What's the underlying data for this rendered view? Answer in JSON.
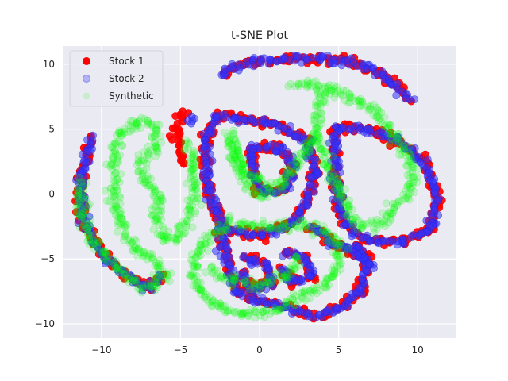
{
  "chart_data": {
    "type": "scatter",
    "title": "t-SNE Plot",
    "xlabel": "",
    "ylabel": "",
    "xlim": [
      -12.4,
      12.4
    ],
    "ylim": [
      -11.1,
      11.4
    ],
    "xticks": [
      -10,
      -5,
      0,
      5,
      10
    ],
    "yticks": [
      -10,
      -5,
      0,
      5,
      10
    ],
    "xtick_labels": [
      "−10",
      "−5",
      "0",
      "5",
      "10"
    ],
    "ytick_labels": [
      "−10",
      "−5",
      "0",
      "5",
      "10"
    ],
    "grid": true,
    "legend_position": "top-left",
    "series": [
      {
        "name": "Stock 1",
        "color": "#ff0000",
        "edge_color": "#ff0000",
        "alpha": 0.9,
        "jitter": 0.35,
        "density": 0.28,
        "paths": [
          [
            [
              -10.6,
              4.3
            ],
            [
              -10.9,
              3
            ],
            [
              -11.3,
              1
            ],
            [
              -11.3,
              -1.5
            ],
            [
              -10.6,
              -3.5
            ],
            [
              -9.6,
              -5
            ],
            [
              -8.6,
              -6.2
            ],
            [
              -7.6,
              -7
            ],
            [
              -6.8,
              -7.2
            ],
            [
              -6.2,
              -6.2
            ]
          ],
          [
            [
              -4.6,
              6.5
            ],
            [
              -5.2,
              5.6
            ],
            [
              -5.3,
              4
            ],
            [
              -4.8,
              2.2
            ]
          ],
          [
            [
              -2.3,
              9
            ],
            [
              -1.8,
              9.8
            ],
            [
              0,
              10.2
            ],
            [
              2,
              10.4
            ],
            [
              4,
              10.5
            ],
            [
              6,
              10.1
            ],
            [
              7.8,
              9.2
            ],
            [
              9.6,
              7.2
            ]
          ],
          [
            [
              -2.7,
              6
            ],
            [
              -3.4,
              4
            ],
            [
              -3.4,
              1.5
            ],
            [
              -3,
              -0.8
            ],
            [
              -2,
              -2.8
            ],
            [
              0,
              -3.2
            ],
            [
              2,
              -2.4
            ],
            [
              3,
              -0.5
            ],
            [
              3.6,
              1.8
            ],
            [
              3.1,
              4
            ],
            [
              1,
              5.3
            ],
            [
              -1.3,
              5.8
            ],
            [
              -2.7,
              6
            ]
          ],
          [
            [
              -0.6,
              3.5
            ],
            [
              -0.4,
              1.5
            ],
            [
              0.2,
              0.2
            ],
            [
              1.6,
              0.3
            ],
            [
              2.2,
              2.2
            ],
            [
              1.3,
              3.6
            ],
            [
              -0.6,
              3.5
            ]
          ],
          [
            [
              4.8,
              5.2
            ],
            [
              6.8,
              5
            ],
            [
              8.6,
              4.3
            ],
            [
              10.5,
              2.3
            ],
            [
              11.2,
              0
            ],
            [
              10.8,
              -2.8
            ],
            [
              9,
              -3.7
            ],
            [
              6.8,
              -3.6
            ],
            [
              5.3,
              -2.3
            ],
            [
              4.8,
              0.4
            ],
            [
              4.8,
              3
            ],
            [
              4.8,
              5.2
            ]
          ],
          [
            [
              3.2,
              -2.5
            ],
            [
              4.6,
              -3.8
            ],
            [
              6.5,
              -4.6
            ],
            [
              7.2,
              -5.8
            ]
          ],
          [
            [
              -2.6,
              -2.5
            ],
            [
              -2.1,
              -5
            ],
            [
              -1.5,
              -7.5
            ],
            [
              0,
              -8.3
            ],
            [
              2,
              -8.8
            ],
            [
              3.5,
              -9.4
            ],
            [
              5,
              -8.8
            ],
            [
              6.4,
              -7.4
            ],
            [
              6.8,
              -5.2
            ],
            [
              6,
              -3.8
            ]
          ],
          [
            [
              -1,
              -4.8
            ],
            [
              0.5,
              -5.5
            ],
            [
              0.8,
              -7
            ],
            [
              -0.6,
              -7.3
            ],
            [
              -1.2,
              -6
            ]
          ],
          [
            [
              1.6,
              -4.5
            ],
            [
              3,
              -4.9
            ],
            [
              3.3,
              -6.4
            ],
            [
              2,
              -6.8
            ],
            [
              1.4,
              -5.6
            ]
          ]
        ]
      },
      {
        "name": "Stock 2",
        "color": "#3333ff",
        "edge_color": "#2222dd",
        "alpha": 0.55,
        "jitter": 0.3,
        "density": 0.28,
        "paths": [
          [
            [
              -10.6,
              4.3
            ],
            [
              -10.9,
              3
            ],
            [
              -11.3,
              1
            ],
            [
              -11.3,
              -1.5
            ],
            [
              -10.6,
              -3.5
            ],
            [
              -9.6,
              -5
            ],
            [
              -8.6,
              -6.2
            ],
            [
              -7.6,
              -7
            ],
            [
              -6.8,
              -7.2
            ],
            [
              -6.2,
              -6.2
            ]
          ],
          [
            [
              -4.2,
              6
            ],
            [
              -4.2,
              5.3
            ]
          ],
          [
            [
              -2.3,
              9
            ],
            [
              -1.8,
              9.8
            ],
            [
              0,
              10.2
            ],
            [
              2,
              10.4
            ],
            [
              4,
              10.5
            ],
            [
              6,
              10.1
            ],
            [
              7.8,
              9.2
            ],
            [
              9.6,
              7.2
            ]
          ],
          [
            [
              -2.7,
              6
            ],
            [
              -3.4,
              4
            ],
            [
              -3.4,
              1.5
            ],
            [
              -3,
              -0.8
            ],
            [
              -2,
              -2.8
            ],
            [
              0,
              -3.2
            ],
            [
              2,
              -2.4
            ],
            [
              3,
              -0.5
            ],
            [
              3.6,
              1.8
            ],
            [
              3.1,
              4
            ],
            [
              1,
              5.3
            ],
            [
              -1.3,
              5.8
            ],
            [
              -2.7,
              6
            ]
          ],
          [
            [
              -0.6,
              3.5
            ],
            [
              -0.4,
              1.5
            ],
            [
              0.2,
              0.2
            ],
            [
              1.6,
              0.3
            ],
            [
              2.2,
              2.2
            ],
            [
              1.3,
              3.6
            ],
            [
              -0.6,
              3.5
            ]
          ],
          [
            [
              4.8,
              5.2
            ],
            [
              6.8,
              5
            ],
            [
              8.6,
              4.3
            ],
            [
              10.5,
              2.3
            ],
            [
              11.2,
              0
            ],
            [
              10.8,
              -2.8
            ],
            [
              9,
              -3.7
            ],
            [
              6.8,
              -3.6
            ],
            [
              5.3,
              -2.3
            ],
            [
              4.8,
              0.4
            ],
            [
              4.8,
              3
            ],
            [
              4.8,
              5.2
            ]
          ],
          [
            [
              3.2,
              -2.5
            ],
            [
              4.6,
              -3.8
            ],
            [
              6.5,
              -4.6
            ],
            [
              7.2,
              -5.8
            ]
          ],
          [
            [
              -2.6,
              -2.5
            ],
            [
              -2.1,
              -5
            ],
            [
              -1.5,
              -7.5
            ],
            [
              0,
              -8.3
            ],
            [
              2,
              -8.8
            ],
            [
              3.5,
              -9.4
            ],
            [
              5,
              -8.8
            ],
            [
              6.4,
              -7.4
            ],
            [
              6.8,
              -5.2
            ],
            [
              6,
              -3.8
            ]
          ],
          [
            [
              -1,
              -4.8
            ],
            [
              0.5,
              -5.5
            ],
            [
              0.8,
              -7
            ],
            [
              -0.6,
              -7.3
            ],
            [
              -1.2,
              -6
            ]
          ],
          [
            [
              1.6,
              -4.5
            ],
            [
              3,
              -4.9
            ],
            [
              3.3,
              -6.4
            ],
            [
              2,
              -6.8
            ],
            [
              1.4,
              -5.6
            ]
          ]
        ]
      },
      {
        "name": "Synthetic",
        "color": "#00ff00",
        "edge_color": "#00ff00",
        "alpha": 0.18,
        "jitter": 0.4,
        "density": 0.18,
        "paths": [
          [
            [
              -11.3,
              1
            ],
            [
              -11.3,
              -1.5
            ],
            [
              -10.6,
              -3.5
            ],
            [
              -9.6,
              -5
            ],
            [
              -8.6,
              -6.2
            ],
            [
              -7.6,
              -7
            ],
            [
              -6.8,
              -7.2
            ],
            [
              -6.2,
              -6.2
            ]
          ],
          [
            [
              -9.2,
              -0.5
            ],
            [
              -9.2,
              2.5
            ],
            [
              -8.8,
              4.6
            ],
            [
              -7.8,
              5.6
            ],
            [
              -6.6,
              5.3
            ],
            [
              -6.6,
              3.6
            ],
            [
              -7.6,
              2.4
            ],
            [
              -7.2,
              0.8
            ],
            [
              -6.3,
              -0.4
            ],
            [
              -6.5,
              -2.2
            ],
            [
              -6.1,
              -3.5
            ],
            [
              -5.2,
              -3.5
            ],
            [
              -4.6,
              -1.8
            ],
            [
              -4.2,
              0
            ],
            [
              -4.2,
              2.5
            ],
            [
              -4.6,
              4
            ]
          ],
          [
            [
              -9.2,
              -0.5
            ],
            [
              -8.6,
              -3
            ],
            [
              -7.6,
              -4.6
            ],
            [
              -6.2,
              -5.6
            ],
            [
              -5.8,
              -6.6
            ]
          ],
          [
            [
              -1.8,
              4.5
            ],
            [
              -1.5,
              2.5
            ],
            [
              -0.8,
              0.8
            ],
            [
              0,
              -0.2
            ],
            [
              1.2,
              0.5
            ],
            [
              2.2,
              2
            ],
            [
              3,
              3.5
            ],
            [
              3.5,
              4.5
            ],
            [
              4,
              3.3
            ],
            [
              4.6,
              1.5
            ],
            [
              5.2,
              0
            ],
            [
              5.8,
              -1.8
            ],
            [
              6.6,
              -2.6
            ],
            [
              7.8,
              -2.1
            ],
            [
              8.8,
              -0.6
            ],
            [
              9.6,
              0.6
            ]
          ],
          [
            [
              -1.8,
              4.5
            ],
            [
              -1.6,
              3
            ],
            [
              -0.8,
              1.6
            ],
            [
              0.5,
              0.8
            ]
          ],
          [
            [
              2.2,
              8.5
            ],
            [
              3.5,
              8.3
            ],
            [
              4.8,
              8
            ],
            [
              6,
              7.4
            ],
            [
              7.2,
              6.4
            ],
            [
              8.2,
              5
            ],
            [
              9,
              3.6
            ],
            [
              9.6,
              2.2
            ],
            [
              9.8,
              0.6
            ]
          ],
          [
            [
              3.5,
              4.5
            ],
            [
              3.8,
              6
            ],
            [
              4,
              7.5
            ],
            [
              4.6,
              8.2
            ]
          ],
          [
            [
              -1.8,
              -2.2
            ],
            [
              -3.2,
              -3.5
            ],
            [
              -4.2,
              -5.2
            ],
            [
              -4,
              -7.2
            ],
            [
              -3,
              -8.5
            ],
            [
              -1.2,
              -9.3
            ],
            [
              0.8,
              -9
            ],
            [
              2.5,
              -8
            ],
            [
              4,
              -7
            ],
            [
              5,
              -5.5
            ],
            [
              5,
              -4
            ],
            [
              4,
              -2.8
            ],
            [
              2.5,
              -2.4
            ],
            [
              1,
              -2.6
            ],
            [
              -0.4,
              -2.4
            ],
            [
              -1.8,
              -2.2
            ]
          ],
          [
            [
              -3.2,
              -5.8
            ],
            [
              -2,
              -6.6
            ],
            [
              0,
              -7
            ],
            [
              1.8,
              -6.2
            ],
            [
              2.6,
              -4.8
            ]
          ]
        ]
      }
    ]
  }
}
